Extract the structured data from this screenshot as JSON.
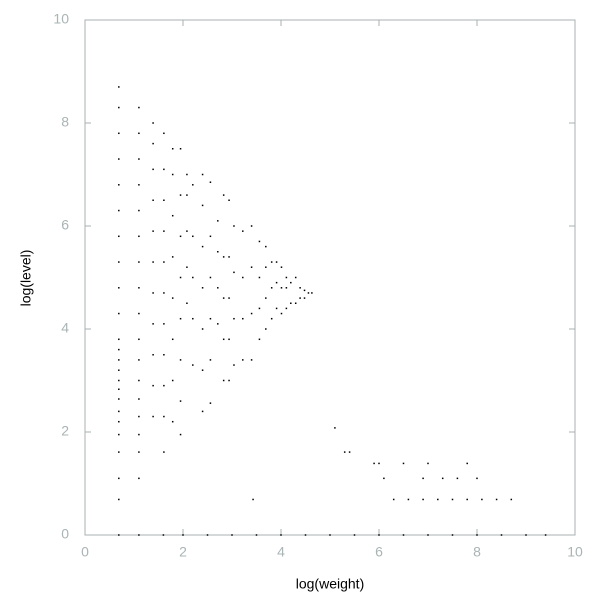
{
  "chart_data": {
    "type": "scatter",
    "xlabel": "log(weight)",
    "ylabel": "log(level)",
    "color": "#000000",
    "xlim": [
      0,
      10
    ],
    "ylim": [
      0,
      10
    ],
    "xticks": [
      0,
      2,
      4,
      6,
      8,
      10
    ],
    "yticks": [
      0,
      2,
      4,
      6,
      8,
      10
    ],
    "x": [
      0.69,
      0.69,
      0.69,
      0.69,
      0.69,
      0.69,
      0.69,
      0.69,
      0.69,
      0.69,
      0.69,
      0.69,
      0.69,
      0.69,
      0.69,
      0.69,
      0.69,
      0.69,
      0.69,
      0.69,
      0.69,
      0.69,
      0.69,
      1.1,
      1.1,
      1.1,
      1.1,
      1.1,
      1.1,
      1.1,
      1.1,
      1.1,
      1.1,
      1.1,
      1.1,
      1.1,
      1.1,
      1.1,
      1.1,
      1.1,
      1.39,
      1.39,
      1.39,
      1.39,
      1.39,
      1.39,
      1.39,
      1.39,
      1.39,
      1.39,
      1.39,
      1.61,
      1.61,
      1.61,
      1.61,
      1.61,
      1.61,
      1.61,
      1.61,
      1.61,
      1.61,
      1.61,
      1.79,
      1.79,
      1.79,
      1.79,
      1.79,
      1.79,
      1.79,
      1.79,
      1.95,
      1.95,
      1.95,
      1.95,
      1.95,
      1.95,
      1.95,
      1.95,
      2.08,
      2.08,
      2.08,
      2.08,
      2.08,
      2.2,
      2.2,
      2.2,
      2.2,
      2.2,
      2.4,
      2.4,
      2.4,
      2.4,
      2.4,
      2.4,
      2.4,
      2.56,
      2.56,
      2.56,
      2.56,
      2.56,
      2.56,
      2.71,
      2.71,
      2.71,
      2.71,
      2.83,
      2.83,
      2.83,
      2.83,
      2.83,
      2.94,
      2.94,
      2.94,
      2.94,
      2.94,
      3.04,
      3.04,
      3.04,
      3.04,
      3.22,
      3.22,
      3.22,
      3.22,
      3.4,
      3.4,
      3.4,
      3.4,
      3.56,
      3.56,
      3.56,
      3.56,
      3.69,
      3.69,
      3.69,
      3.69,
      3.81,
      3.81,
      3.81,
      3.91,
      3.91,
      3.91,
      4.01,
      4.01,
      4.01,
      4.11,
      4.11,
      4.11,
      4.2,
      4.2,
      4.3,
      4.3,
      4.39,
      4.39,
      4.48,
      4.48,
      4.56,
      4.63,
      5.1,
      5.3,
      5.4,
      5.9,
      6.0,
      6.1,
      6.5,
      6.9,
      7.0,
      7.3,
      7.6,
      7.8,
      8.0,
      3.43,
      6.3,
      6.6,
      6.9,
      7.2,
      7.5,
      7.8,
      8.1,
      8.4,
      8.7,
      0.69,
      1.1,
      1.6,
      2.0,
      2.5,
      3,
      3.5,
      4,
      4.5,
      5,
      5.5,
      6,
      6.5,
      7,
      7.5,
      8,
      8.5,
      9,
      9.4
    ],
    "y": [
      0.69,
      1.1,
      1.61,
      1.95,
      2.2,
      2.4,
      2.64,
      2.83,
      3,
      3.2,
      3.4,
      3.6,
      3.8,
      4.3,
      4.8,
      5.3,
      5.8,
      6.3,
      6.8,
      7.3,
      7.8,
      8.3,
      8.7,
      1.1,
      1.61,
      1.95,
      2.3,
      2.64,
      3,
      3.4,
      3.8,
      4.3,
      4.8,
      5.3,
      5.8,
      6.3,
      6.8,
      7.3,
      7.8,
      8.3,
      2.3,
      2.9,
      3.5,
      4.1,
      4.7,
      5.3,
      5.9,
      6.5,
      7.1,
      7.6,
      8,
      1.61,
      2.3,
      2.9,
      3.5,
      4.1,
      4.7,
      5.3,
      5.9,
      6.5,
      7.1,
      7.8,
      2.2,
      3,
      3.8,
      4.6,
      5.4,
      6.2,
      7,
      7.5,
      1.95,
      2.6,
      3.4,
      4.2,
      5,
      5.8,
      6.6,
      7.5,
      4.5,
      5.2,
      5.9,
      6.6,
      7,
      3.3,
      4.2,
      5,
      5.8,
      6.8,
      2.4,
      3.2,
      4,
      4.8,
      5.6,
      6.4,
      7,
      2.56,
      3.4,
      4.2,
      5,
      5.8,
      6.85,
      4.1,
      4.8,
      5.5,
      6.1,
      3,
      3.8,
      4.6,
      5.4,
      6.6,
      3,
      3.8,
      4.6,
      5.4,
      6.5,
      3.3,
      4.2,
      5.1,
      6,
      3.4,
      4.2,
      5,
      5.9,
      3.4,
      4.3,
      5.2,
      6,
      3.8,
      4.4,
      5,
      5.7,
      4,
      4.6,
      5.2,
      5.6,
      4.2,
      4.8,
      5.3,
      4.4,
      4.9,
      5.3,
      4.3,
      4.8,
      5.2,
      4.4,
      4.8,
      5,
      4.5,
      4.9,
      4.5,
      5,
      4.6,
      4.8,
      4.6,
      4.75,
      4.7,
      4.7,
      2.08,
      1.61,
      1.61,
      1.39,
      1.39,
      1.1,
      1.39,
      1.1,
      1.39,
      1.1,
      1.1,
      1.39,
      1.1,
      0.69,
      0.69,
      0.69,
      0.69,
      0.69,
      0.69,
      0.69,
      0.69,
      0.69,
      0.69,
      0,
      0,
      0,
      0,
      0,
      0,
      0,
      0,
      0,
      0,
      0,
      0,
      0,
      0,
      0,
      0,
      0,
      0,
      0
    ]
  }
}
